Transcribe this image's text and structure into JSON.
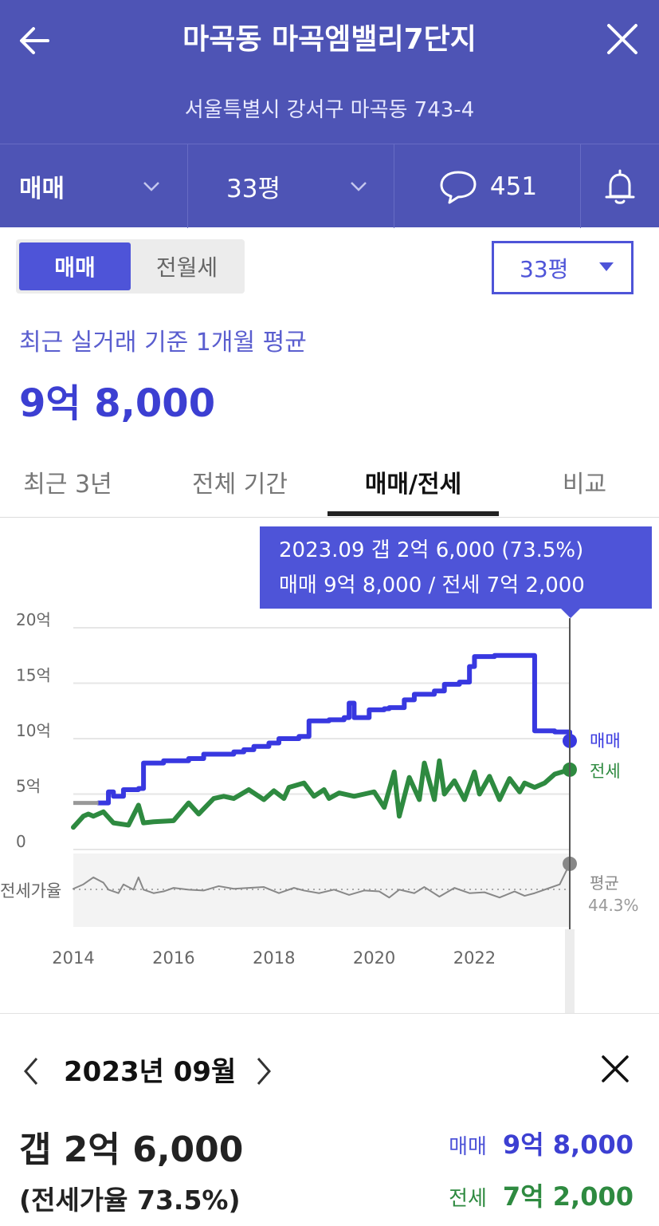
{
  "header": {
    "title": "마곡동 마곡엠밸리7단지",
    "address": "서울특별시 강서구 마곡동 743-4",
    "trade_type": "매매",
    "area": "33평",
    "comment_count": "451"
  },
  "toggle": {
    "sale": "매매",
    "rent": "전월세"
  },
  "size_select": {
    "selected": "33평"
  },
  "summary": {
    "label": "최근 실거래 기준 1개월 평균",
    "price": "9억 8,000"
  },
  "tabs": [
    {
      "label": "최근 3년",
      "active": false
    },
    {
      "label": "전체 기간",
      "active": false
    },
    {
      "label": "매매/전세",
      "active": true
    },
    {
      "label": "비교",
      "active": false
    }
  ],
  "tooltip": {
    "line1": "2023.09  갭 2억 6,000 (73.5%)",
    "line2": "매매 9억 8,000 / 전세 7억 2,000"
  },
  "chart_data": {
    "type": "line",
    "x_label_ticks": [
      "2014",
      "2016",
      "2018",
      "2020",
      "2022"
    ],
    "y_tick_labels": [
      "20억",
      "15억",
      "10억",
      "5억",
      "0"
    ],
    "ylim": [
      0,
      20
    ],
    "y_unit": "억",
    "series": [
      {
        "name": "매매",
        "color": "#3838e0",
        "x": [
          2014.5,
          2014.7,
          2014.8,
          2015.0,
          2015.3,
          2015.4,
          2015.8,
          2016.3,
          2016.6,
          2016.9,
          2017.2,
          2017.4,
          2017.6,
          2017.9,
          2018.1,
          2018.5,
          2018.7,
          2019.1,
          2019.4,
          2019.5,
          2019.6,
          2019.9,
          2020.2,
          2020.3,
          2020.6,
          2020.8,
          2021.2,
          2021.4,
          2021.7,
          2021.9,
          2022.0,
          2022.4,
          2022.7,
          2023.2,
          2023.4,
          2023.6,
          2023.9
        ],
        "values": [
          4.2,
          5.2,
          4.8,
          5.4,
          5.5,
          7.8,
          8.0,
          8.2,
          8.6,
          8.6,
          8.8,
          9.0,
          9.3,
          9.6,
          10.0,
          10.2,
          11.6,
          11.7,
          11.9,
          13.2,
          11.9,
          12.6,
          12.7,
          12.8,
          13.5,
          14.0,
          14.3,
          14.9,
          15.1,
          16.5,
          17.4,
          17.5,
          17.5,
          10.7,
          10.7,
          10.6,
          9.8
        ]
      },
      {
        "name": "전세",
        "color": "#2e8a40",
        "x": [
          2014.0,
          2014.2,
          2014.3,
          2014.4,
          2014.6,
          2014.8,
          2015.1,
          2015.3,
          2015.4,
          2015.6,
          2016.0,
          2016.3,
          2016.5,
          2016.8,
          2017.0,
          2017.2,
          2017.5,
          2017.8,
          2018.0,
          2018.2,
          2018.3,
          2018.6,
          2018.8,
          2019.0,
          2019.1,
          2019.3,
          2019.6,
          2019.8,
          2020.0,
          2020.2,
          2020.4,
          2020.5,
          2020.7,
          2020.9,
          2021.0,
          2021.2,
          2021.3,
          2021.4,
          2021.6,
          2021.8,
          2022.0,
          2022.1,
          2022.3,
          2022.5,
          2022.7,
          2022.9,
          2023.0,
          2023.2,
          2023.4,
          2023.6,
          2023.9
        ],
        "values": [
          2.0,
          3.0,
          3.2,
          3.0,
          3.4,
          2.4,
          2.2,
          4.0,
          2.4,
          2.5,
          2.6,
          4.2,
          3.2,
          4.6,
          4.8,
          4.6,
          5.4,
          4.5,
          5.3,
          4.6,
          5.6,
          6.0,
          4.8,
          5.4,
          4.6,
          5.1,
          4.8,
          5.0,
          5.2,
          3.8,
          7.0,
          3.0,
          6.5,
          4.5,
          7.8,
          4.5,
          8.0,
          5.0,
          6.2,
          4.5,
          7.0,
          5.0,
          6.6,
          4.5,
          6.4,
          5.2,
          6.0,
          5.6,
          6.0,
          6.8,
          7.2
        ]
      },
      {
        "name": "전세가율",
        "color": "#888888",
        "x": [
          2014.0,
          2014.2,
          2014.4,
          2014.6,
          2014.7,
          2014.9,
          2015.0,
          2015.2,
          2015.3,
          2015.4,
          2015.6,
          2015.8,
          2016.0,
          2016.3,
          2016.6,
          2016.9,
          2017.2,
          2017.5,
          2017.8,
          2018.1,
          2018.4,
          2018.6,
          2018.9,
          2019.2,
          2019.5,
          2019.8,
          2020.1,
          2020.3,
          2020.5,
          2020.8,
          2021.0,
          2021.3,
          2021.6,
          2021.9,
          2022.2,
          2022.5,
          2022.8,
          2023.0,
          2023.2,
          2023.5,
          2023.7,
          2023.9
        ],
        "values": [
          45,
          50,
          58,
          52,
          44,
          40,
          50,
          44,
          58,
          44,
          40,
          42,
          46,
          44,
          43,
          48,
          45,
          46,
          47,
          40,
          46,
          43,
          40,
          44,
          38,
          43,
          42,
          35,
          44,
          40,
          47,
          36,
          46,
          40,
          41,
          35,
          42,
          37,
          40,
          46,
          50,
          73.5
        ]
      }
    ],
    "legend": {
      "sale": "매매",
      "rent": "전세",
      "ratio_avg_label": "평균",
      "ratio_avg_value": "44.3%"
    },
    "ratio_label": "전세가율",
    "selected_x": 2023.9
  },
  "detail": {
    "date": "2023년 09월",
    "gap": "갭 2억 6,000",
    "ratio": "(전세가율 73.5%)",
    "sale_label": "매매",
    "sale_value": "9억 8,000",
    "rent_label": "전세",
    "rent_value": "7억 2,000"
  },
  "colors": {
    "header": "#4e54b5",
    "accent": "#4e54d8",
    "sale": "#3838e0",
    "rent": "#2e8a40"
  }
}
